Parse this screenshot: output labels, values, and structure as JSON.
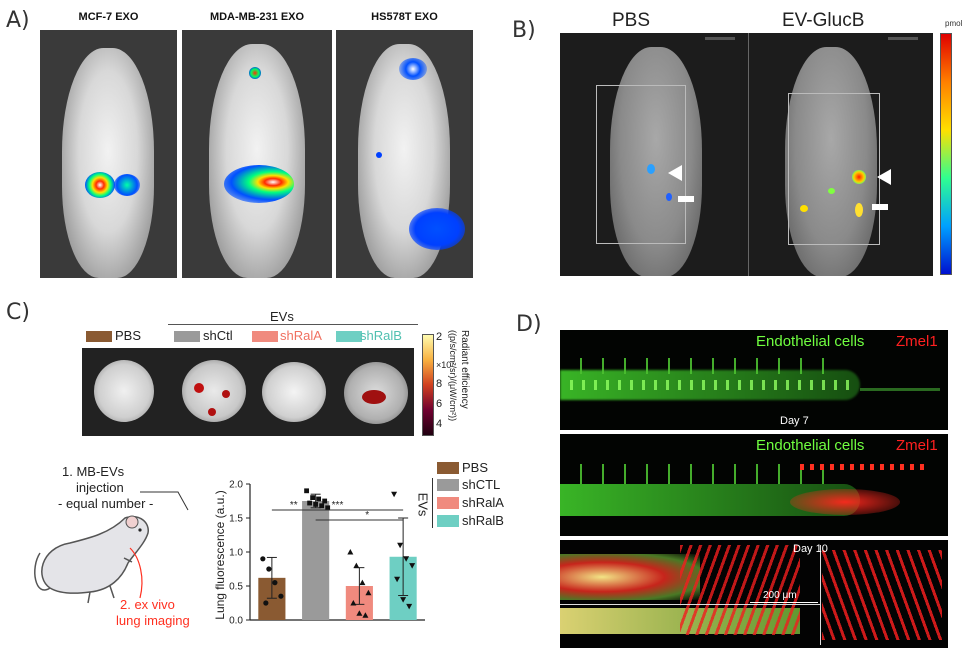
{
  "panels": {
    "a": {
      "letter": "A)",
      "labels": [
        "MCF-7 EXO",
        "MDA-MB-231 EXO",
        "HS578T EXO"
      ]
    },
    "b": {
      "letter": "B)",
      "labels": [
        "PBS",
        "EV-GlucB"
      ],
      "colorbar_unit": "pmol"
    },
    "c": {
      "letter": "C)",
      "evs_label": "EVs",
      "groups": [
        "PBS",
        "shCtl",
        "shRalA",
        "shRalB"
      ],
      "colorbar_title": "Radiant efficiency",
      "colorbar_units": "((p/s/cm²/sr)/(μW/cm²))",
      "colorbar_ticks": [
        "2",
        "×10⁷",
        "8",
        "6",
        "4"
      ],
      "protocol": {
        "line1": "1. MB-EVs",
        "line2": "injection",
        "line3": "- equal number -",
        "step2_line1": "2. ex vivo",
        "step2_line2": "lung imaging"
      }
    },
    "d": {
      "letter": "D)",
      "row1_label_green": "Endothelial cells",
      "row1_label_red": "Zmel1",
      "row1_day": "Day 7",
      "row2_label_green": "Endothelial cells",
      "row2_label_red": "Zmel1",
      "row3_day": "Day 10",
      "scale": "200 μm"
    }
  },
  "chart_data": {
    "type": "bar",
    "categories": [
      "PBS",
      "shCTL",
      "shRalA",
      "shRalB"
    ],
    "values": [
      0.62,
      1.75,
      0.5,
      0.93
    ],
    "errors": [
      0.3,
      0.1,
      0.27,
      0.57
    ],
    "colors": [
      "#8a5a32",
      "#9a9a9a",
      "#f08a7e",
      "#6ecfc3"
    ],
    "points": [
      [
        0.9,
        0.75,
        0.55,
        0.35,
        0.25
      ],
      [
        1.9,
        1.8,
        1.78,
        1.75,
        1.72,
        1.7,
        1.68,
        1.65
      ],
      [
        1.0,
        0.8,
        0.55,
        0.4,
        0.25,
        0.1,
        0.07
      ],
      [
        1.85,
        1.1,
        0.9,
        0.8,
        0.6,
        0.3,
        0.2
      ]
    ],
    "markers": [
      "circle",
      "square",
      "triangle",
      "triangle-down"
    ],
    "ylabel": "Lung fluorescence (a.u.)",
    "ylim": [
      0,
      2.0
    ],
    "yticks": [
      "0.0",
      "0.5",
      "1.0",
      "1.5",
      "2.0"
    ],
    "significance": [
      "**",
      "***",
      "*"
    ],
    "legend": [
      "PBS",
      "shCTL",
      "shRalA",
      "shRalB"
    ],
    "legend_group": "EVs"
  }
}
